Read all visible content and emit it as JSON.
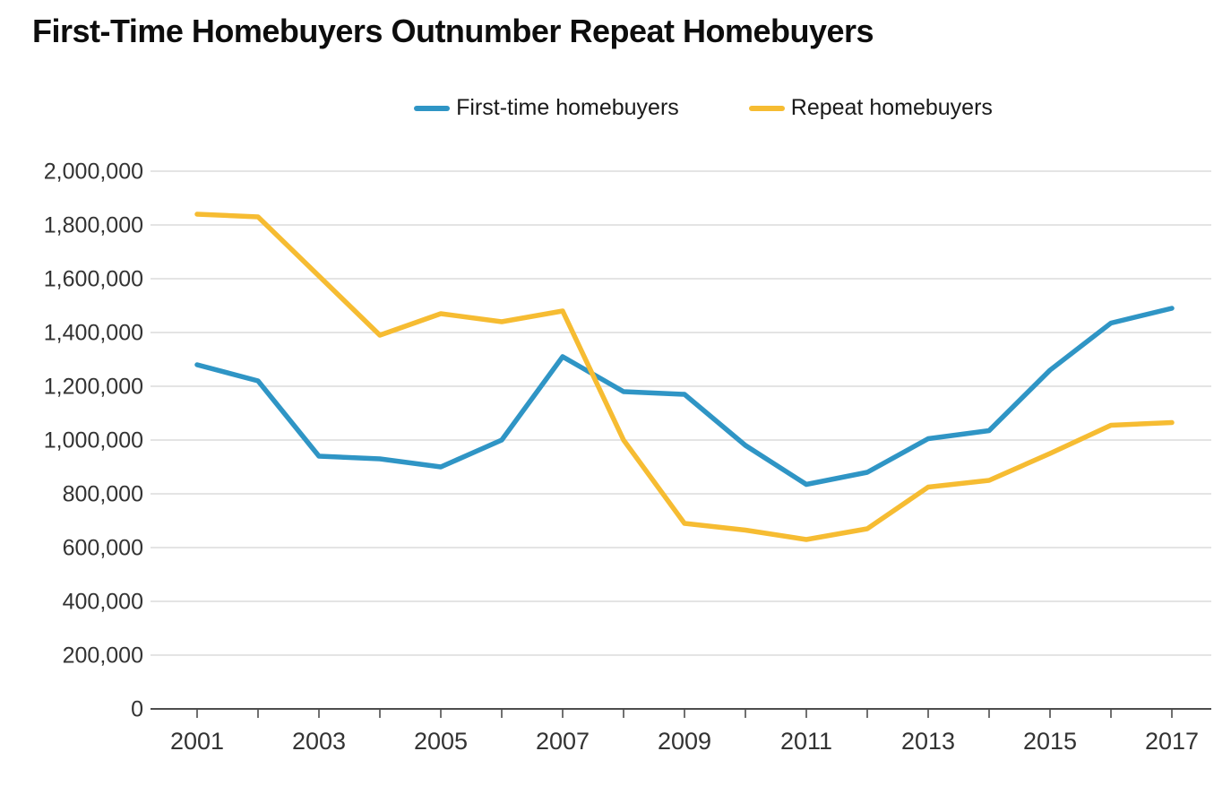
{
  "title": "First-Time Homebuyers Outnumber Repeat Homebuyers",
  "legend": {
    "position": "top-center",
    "items": [
      {
        "label": "First-time homebuyers",
        "color": "#2F95C5"
      },
      {
        "label": "Repeat homebuyers",
        "color": "#F6BC32"
      }
    ]
  },
  "chart_data": {
    "type": "line",
    "title": "First-Time Homebuyers Outnumber Repeat Homebuyers",
    "xlabel": "",
    "ylabel": "",
    "grid": true,
    "x": [
      2001,
      2002,
      2003,
      2004,
      2005,
      2006,
      2007,
      2008,
      2009,
      2010,
      2011,
      2012,
      2013,
      2014,
      2015,
      2016,
      2017
    ],
    "series": [
      {
        "name": "First-time homebuyers",
        "color": "#2F95C5",
        "values": [
          1280000,
          1220000,
          940000,
          930000,
          900000,
          1000000,
          1310000,
          1180000,
          1170000,
          980000,
          835000,
          880000,
          1005000,
          1035000,
          1260000,
          1435000,
          1490000
        ]
      },
      {
        "name": "Repeat homebuyers",
        "color": "#F6BC32",
        "values": [
          1840000,
          1830000,
          1610000,
          1390000,
          1470000,
          1440000,
          1480000,
          1000000,
          690000,
          665000,
          630000,
          670000,
          825000,
          850000,
          950000,
          1055000,
          1065000
        ]
      }
    ],
    "ylim": [
      0,
      2000000
    ],
    "ytick_step": 200000,
    "ytick_labels": [
      "0",
      "200,000",
      "400,000",
      "600,000",
      "800,000",
      "1,000,000",
      "1,200,000",
      "1,400,000",
      "1,600,000",
      "1,800,000",
      "2,000,000"
    ],
    "xtick_labels": [
      "2001",
      "2003",
      "2005",
      "2007",
      "2009",
      "2011",
      "2013",
      "2015",
      "2017"
    ]
  },
  "colors": {
    "grid": "#DBDBDB",
    "axis": "#4D4D4D",
    "tick_text": "#333333",
    "title_text": "#0D0D0D"
  }
}
